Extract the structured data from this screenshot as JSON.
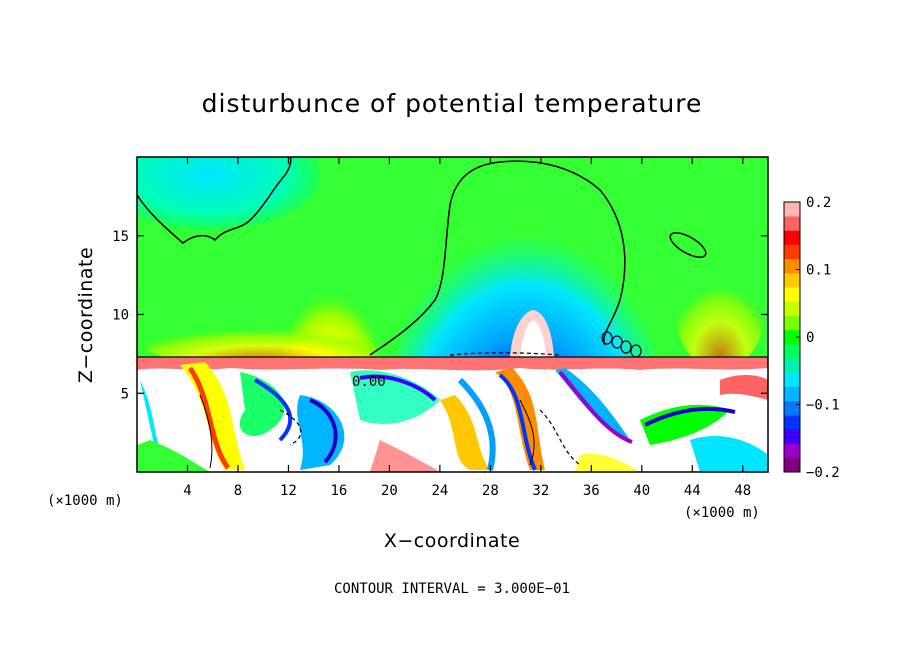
{
  "chart_data": {
    "type": "heatmap",
    "title": "disturbunce of potential temperature",
    "xlabel": "X−coordinate",
    "ylabel": "Z−coordinate",
    "x_unit": "(×1000 m)",
    "z_unit": "(×1000 m)",
    "xlim": [
      0,
      50
    ],
    "ylim": [
      0,
      20
    ],
    "x_ticks": [
      4,
      8,
      12,
      16,
      20,
      24,
      28,
      32,
      36,
      40,
      44,
      48
    ],
    "y_ticks": [
      5,
      10,
      15
    ],
    "colorbar": {
      "vmin": -0.2,
      "vmax": 0.2,
      "ticks": [
        0.2,
        0.1,
        0,
        -0.1,
        -0.2
      ],
      "tick_labels": [
        "0.2",
        "0.1",
        "0",
        "−0.1",
        "−0.2"
      ],
      "colors": [
        "#800080",
        "#9c00c8",
        "#3c00ff",
        "#0033ff",
        "#0078ff",
        "#00b4ff",
        "#00e6ff",
        "#00f0b4",
        "#00ff5a",
        "#00ff00",
        "#7cff00",
        "#c8ff00",
        "#ffff00",
        "#ffc800",
        "#ff8c00",
        "#ff3c00",
        "#ff0000",
        "#ff6464",
        "#ffb4b4"
      ]
    },
    "contour_label": "0.00",
    "contour_interval": "CONTOUR INTERVAL = 3.000E−01"
  }
}
